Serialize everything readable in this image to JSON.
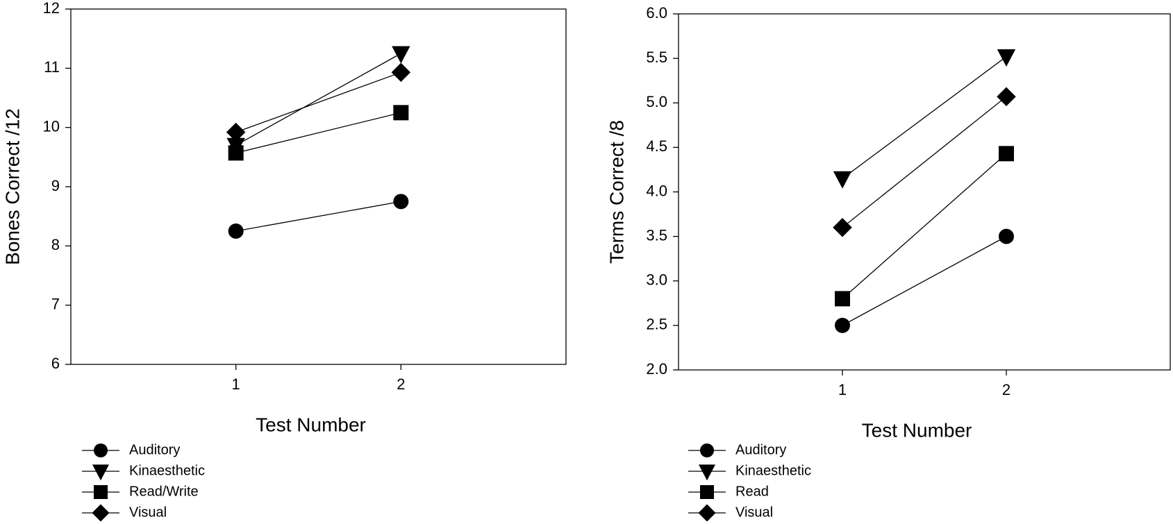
{
  "chart_data": [
    {
      "type": "line",
      "x_label": "Test Number",
      "y_label": "Bones Correct /12",
      "x": [
        1,
        2
      ],
      "xlim": [
        0,
        3
      ],
      "xticks": [
        1,
        2
      ],
      "ylim": [
        6,
        12
      ],
      "yticks": [
        6,
        7,
        8,
        9,
        10,
        11,
        12
      ],
      "series": [
        {
          "name": "Auditory",
          "color": "#000000",
          "marker": "circle",
          "values": [
            8.25,
            8.75
          ]
        },
        {
          "name": "Kinaesthetic",
          "color": "#000000",
          "marker": "triangle-down",
          "values": [
            9.7,
            11.25
          ]
        },
        {
          "name": "Read/Write",
          "color": "#000000",
          "marker": "square",
          "values": [
            9.57,
            10.25
          ]
        },
        {
          "name": "Visual",
          "color": "#000000",
          "marker": "diamond",
          "values": [
            9.92,
            10.93
          ]
        }
      ]
    },
    {
      "type": "line",
      "x_label": "Test Number",
      "y_label": "Terms Correct /8",
      "x": [
        1,
        2
      ],
      "xlim": [
        0,
        3
      ],
      "xticks": [
        1,
        2
      ],
      "ylim": [
        2,
        6
      ],
      "yticks": [
        {
          "value": 2,
          "label": "2.0"
        },
        {
          "value": 2.5,
          "label": "2.5"
        },
        {
          "value": 3,
          "label": "3.0"
        },
        {
          "value": 3.5,
          "label": "3.5"
        },
        {
          "value": 4,
          "label": "4.0"
        },
        {
          "value": 4.5,
          "label": "4.5"
        },
        {
          "value": 5,
          "label": "5.0"
        },
        {
          "value": 5.5,
          "label": "5.5"
        },
        {
          "value": 6,
          "label": "6.0"
        }
      ],
      "series": [
        {
          "name": "Auditory",
          "color": "#000000",
          "marker": "circle",
          "values": [
            2.5,
            3.5
          ]
        },
        {
          "name": "Kinaesthetic",
          "color": "#000000",
          "marker": "triangle-down",
          "values": [
            4.15,
            5.52
          ]
        },
        {
          "name": "Read",
          "color": "#000000",
          "marker": "square",
          "values": [
            2.8,
            4.43
          ]
        },
        {
          "name": "Visual",
          "color": "#000000",
          "marker": "diamond",
          "values": [
            3.6,
            5.07
          ]
        }
      ]
    }
  ]
}
